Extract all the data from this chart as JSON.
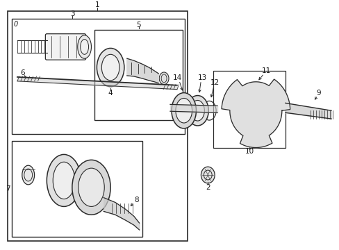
{
  "bg_color": "#ffffff",
  "line_color": "#2a2a2a",
  "fig_width": 4.89,
  "fig_height": 3.6,
  "dpi": 100,
  "label_fontsize": 7.5
}
